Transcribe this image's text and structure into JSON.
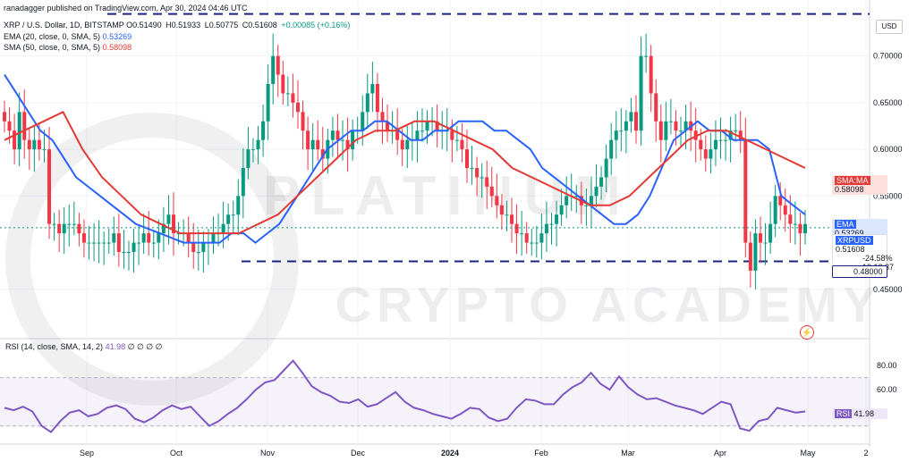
{
  "header": {
    "author_line": "ranadagger published on TradingView.com, Apr 30, 2024 04:46 UTC",
    "symbol": "XRP / U.S. Dollar, 1D, BITSTAMP",
    "open_label": "O",
    "open": "0.51490",
    "high_label": "H",
    "high": "0.51933",
    "low_label": "L",
    "low": "0.50775",
    "close_label": "C",
    "close": "0.51608",
    "change": "+0.00085 (+0.16%)",
    "ema_label": "EMA (20, close, 0, SMA, 5)",
    "ema_value": "0.53269",
    "sma_label": "SMA (50, close, 0, SMA, 5)",
    "sma_value": "0.58098",
    "currency": "USD"
  },
  "rsi_header": {
    "label": "RSI (14, close, SMA, 14, 2)",
    "value": "41.98",
    "extras": "∅ ∅ ∅ ∅"
  },
  "tags": {
    "sma_name": "SMA:MA",
    "sma_value": "0.58098",
    "ema_name": "EMA",
    "ema_value": "0.53269",
    "symbol_name": "XRPUSD",
    "price_value": "0.51608",
    "price_change": "-24.58%",
    "countdown": "19:13:37",
    "support_value": "0.48000",
    "rsi_name": "RSI",
    "rsi_value": "41.98"
  },
  "watermark": {
    "line1": "PLATINUM",
    "line2": "CRYPTO ACADEMY"
  },
  "colors": {
    "up": "#089981",
    "down": "#f23645",
    "ema": "#2962ff",
    "sma": "#e53935",
    "rsi": "#7e57c2",
    "level": "#1a237e"
  },
  "chart_data": [
    {
      "type": "line",
      "title": "XRP / U.S. Dollar, 1D, BITSTAMP",
      "price_axis_ticks": [
        "0.70000",
        "0.65000",
        "0.60000",
        "0.55000",
        "0.45000"
      ],
      "y_range": [
        0.4,
        0.76
      ],
      "time_axis_ticks": [
        "Sep",
        "Oct",
        "Nov",
        "Dec",
        "2024",
        "Feb",
        "Mar",
        "Apr",
        "May",
        "2"
      ],
      "horizontal_levels": [
        0.745,
        0.48
      ],
      "series": [
        {
          "name": "XRPUSD",
          "values": [
            0.63,
            0.62,
            0.6,
            0.64,
            0.61,
            0.6,
            0.61,
            0.6,
            0.6,
            0.52,
            0.52,
            0.51,
            0.52,
            0.52,
            0.52,
            0.51,
            0.5,
            0.5,
            0.5,
            0.5,
            0.5,
            0.5,
            0.51,
            0.49,
            0.49,
            0.49,
            0.5,
            0.5,
            0.51,
            0.5,
            0.5,
            0.51,
            0.52,
            0.53,
            0.51,
            0.51,
            0.51,
            0.5,
            0.49,
            0.49,
            0.5,
            0.5,
            0.51,
            0.51,
            0.52,
            0.53,
            0.53,
            0.55,
            0.58,
            0.6,
            0.6,
            0.61,
            0.63,
            0.67,
            0.7,
            0.68,
            0.66,
            0.66,
            0.65,
            0.64,
            0.62,
            0.6,
            0.61,
            0.6,
            0.59,
            0.61,
            0.62,
            0.61,
            0.61,
            0.6,
            0.62,
            0.62,
            0.64,
            0.66,
            0.67,
            0.64,
            0.63,
            0.62,
            0.62,
            0.61,
            0.6,
            0.61,
            0.61,
            0.62,
            0.62,
            0.63,
            0.63,
            0.62,
            0.62,
            0.62,
            0.61,
            0.61,
            0.6,
            0.58,
            0.58,
            0.57,
            0.57,
            0.56,
            0.55,
            0.54,
            0.53,
            0.53,
            0.52,
            0.51,
            0.51,
            0.5,
            0.5,
            0.5,
            0.51,
            0.52,
            0.52,
            0.53,
            0.54,
            0.55,
            0.55,
            0.55,
            0.54,
            0.54,
            0.55,
            0.56,
            0.57,
            0.59,
            0.61,
            0.62,
            0.62,
            0.63,
            0.64,
            0.62,
            0.7,
            0.7,
            0.66,
            0.63,
            0.61,
            0.63,
            0.63,
            0.62,
            0.62,
            0.63,
            0.62,
            0.61,
            0.6,
            0.59,
            0.6,
            0.61,
            0.61,
            0.61,
            0.62,
            0.62,
            0.61,
            0.5,
            0.47,
            0.51,
            0.5,
            0.5,
            0.52,
            0.55,
            0.54,
            0.53,
            0.52,
            0.52,
            0.51,
            0.52
          ]
        },
        {
          "name": "EMA",
          "values": [
            0.68,
            0.66,
            0.64,
            0.62,
            0.61,
            0.59,
            0.57,
            0.56,
            0.55,
            0.54,
            0.53,
            0.52,
            0.515,
            0.51,
            0.505,
            0.5,
            0.5,
            0.5,
            0.5,
            0.51,
            0.51,
            0.5,
            0.51,
            0.52,
            0.54,
            0.56,
            0.58,
            0.6,
            0.61,
            0.62,
            0.62,
            0.63,
            0.63,
            0.62,
            0.61,
            0.61,
            0.62,
            0.62,
            0.63,
            0.63,
            0.63,
            0.62,
            0.62,
            0.61,
            0.6,
            0.58,
            0.57,
            0.56,
            0.55,
            0.54,
            0.53,
            0.52,
            0.52,
            0.53,
            0.55,
            0.58,
            0.61,
            0.62,
            0.63,
            0.62,
            0.62,
            0.61,
            0.61,
            0.61,
            0.6,
            0.55,
            0.54,
            0.53
          ]
        },
        {
          "name": "SMA",
          "values": [
            0.61,
            0.62,
            0.63,
            0.64,
            0.6,
            0.57,
            0.55,
            0.53,
            0.52,
            0.51,
            0.51,
            0.51,
            0.51,
            0.52,
            0.53,
            0.55,
            0.57,
            0.59,
            0.61,
            0.62,
            0.62,
            0.63,
            0.63,
            0.62,
            0.61,
            0.6,
            0.58,
            0.57,
            0.56,
            0.55,
            0.54,
            0.54,
            0.55,
            0.57,
            0.59,
            0.61,
            0.62,
            0.62,
            0.61,
            0.6,
            0.59,
            0.58
          ]
        }
      ]
    },
    {
      "type": "line",
      "title": "RSI (14, close, SMA, 14, 2)",
      "y_ticks": [
        "80.00",
        "60.00"
      ],
      "y_range": [
        15,
        100
      ],
      "bands": [
        30,
        70
      ],
      "series": [
        {
          "name": "RSI",
          "values": [
            45,
            43,
            46,
            42,
            30,
            25,
            34,
            41,
            43,
            38,
            40,
            45,
            47,
            44,
            36,
            33,
            37,
            43,
            47,
            44,
            46,
            38,
            30,
            34,
            40,
            45,
            52,
            60,
            66,
            68,
            76,
            84,
            74,
            63,
            58,
            55,
            50,
            49,
            52,
            46,
            48,
            53,
            58,
            50,
            45,
            43,
            40,
            38,
            36,
            40,
            45,
            44,
            37,
            34,
            36,
            45,
            52,
            51,
            48,
            48,
            56,
            62,
            66,
            74,
            65,
            60,
            71,
            62,
            56,
            52,
            53,
            50,
            47,
            45,
            43,
            40,
            45,
            50,
            48,
            28,
            26,
            34,
            36,
            45,
            43,
            41,
            42
          ]
        }
      ]
    }
  ]
}
